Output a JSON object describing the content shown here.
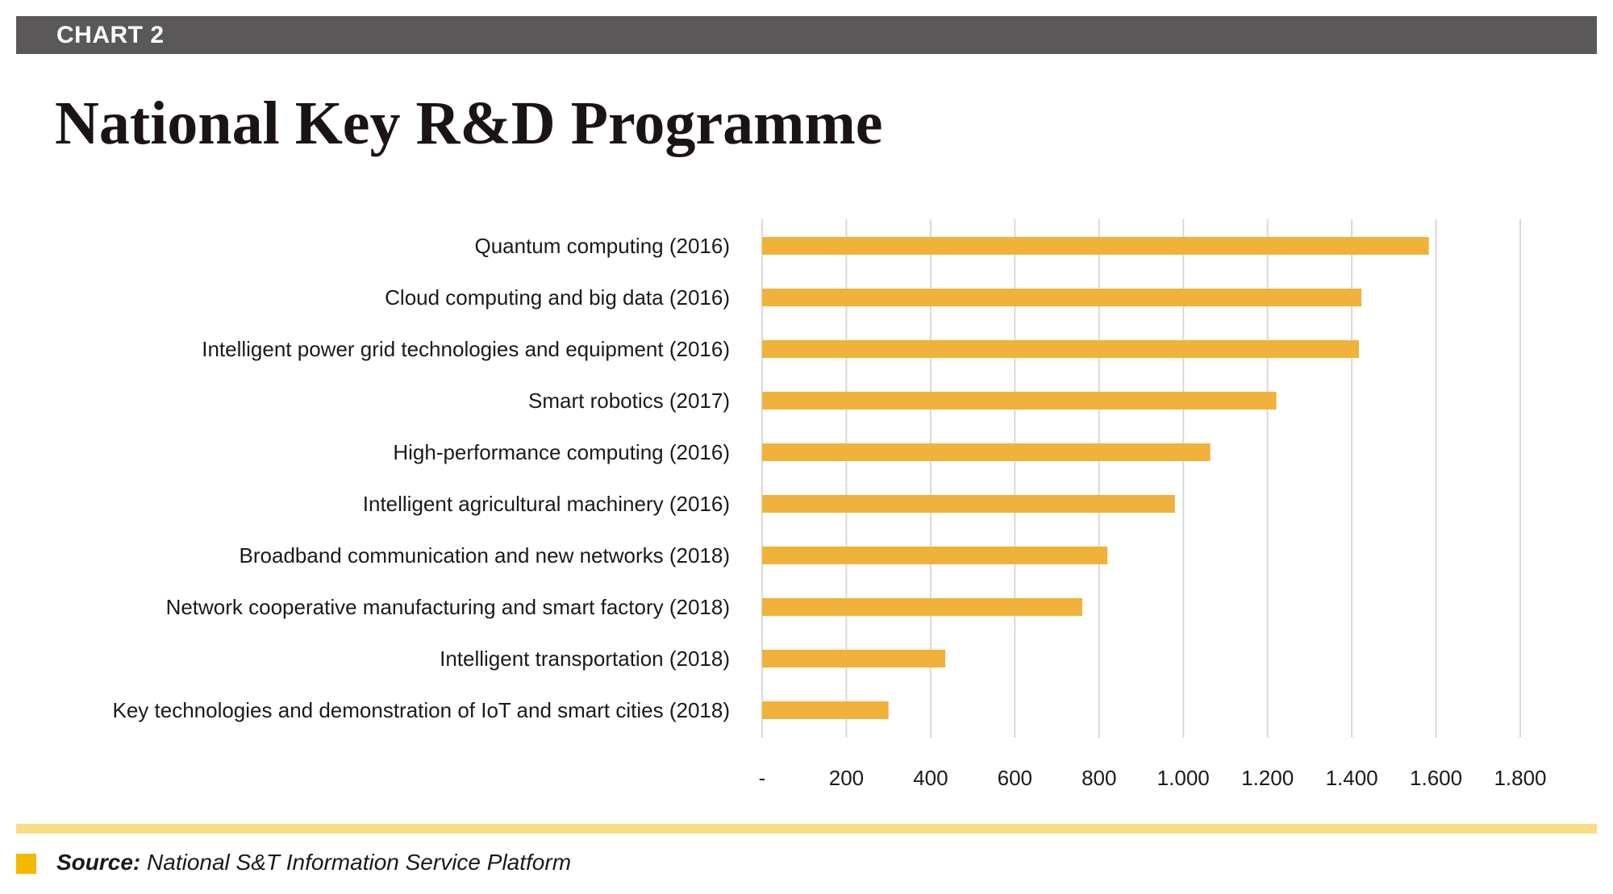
{
  "header": {
    "label": "CHART 2"
  },
  "title": "National Key R&D Programme",
  "source": {
    "label": "Source:",
    "text": "National S&T Information Service Platform"
  },
  "colors": {
    "bar": "#f0b23a",
    "header_band": "#5a5858",
    "gridline": "#d9d9d9",
    "footer_rule": "#f9dd82",
    "source_square": "#f5b800"
  },
  "chart_data": {
    "type": "bar",
    "orientation": "horizontal",
    "title": "National Key R&D Programme",
    "categories": [
      "Quantum computing (2016)",
      "Cloud computing and big data (2016)",
      "Intelligent power grid technologies and equipment (2016)",
      "Smart robotics  (2017)",
      "High-performance computing  (2016)",
      "Intelligent agricultural machinery  (2016)",
      "Broadband communication and new networks  (2018)",
      "Network cooperative manufacturing and smart factory  (2018)",
      "Intelligent transportation (2018)",
      "Key technologies and demonstration of IoT and smart cities (2018)"
    ],
    "values": [
      1583,
      1423,
      1417,
      1221,
      1064,
      980,
      820,
      760,
      435,
      300
    ],
    "xlim": [
      0,
      1800
    ],
    "xticks": [
      0,
      200,
      400,
      600,
      800,
      1000,
      1200,
      1400,
      1600,
      1800
    ],
    "xtick_labels": [
      "-",
      "200",
      "400",
      "600",
      "800",
      "1.000",
      "1.200",
      "1.400",
      "1.600",
      "1.800"
    ],
    "xlabel": "",
    "ylabel": "",
    "grid": true,
    "legend": "none"
  }
}
